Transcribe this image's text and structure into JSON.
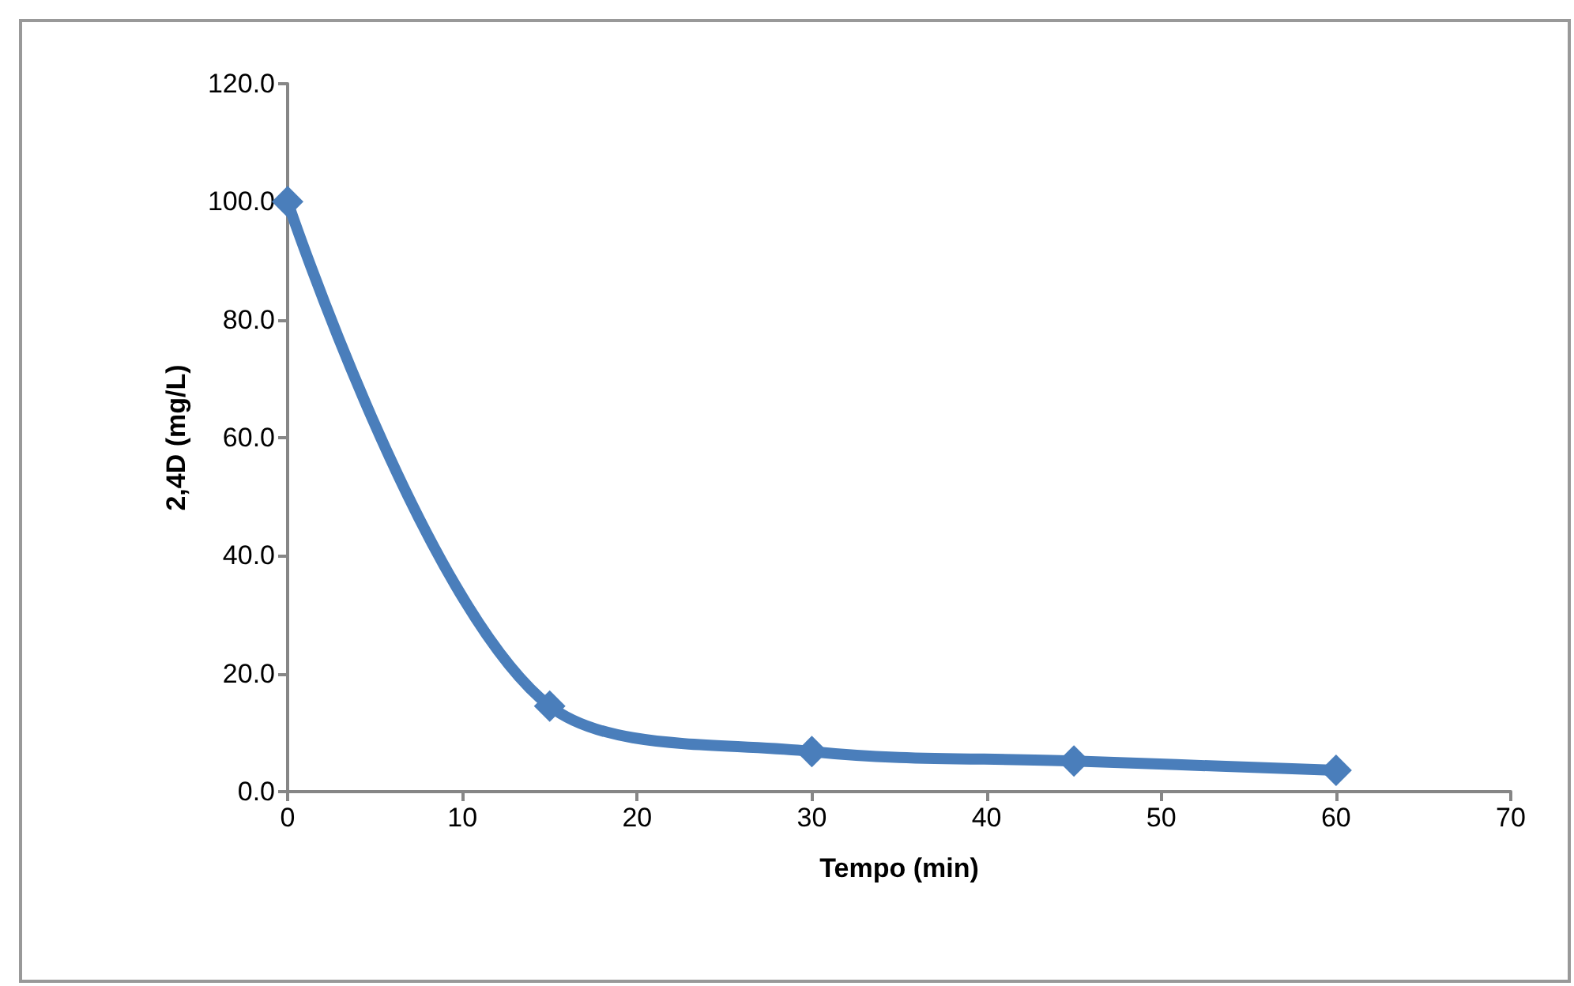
{
  "chart_data": {
    "type": "line",
    "xlabel": "Tempo (min)",
    "ylabel": "2,4D (mg/L)",
    "x": [
      0,
      15,
      30,
      45,
      60
    ],
    "series": [
      {
        "color": "#4a7ebb",
        "values": [
          100,
          14.5,
          6.8,
          5.2,
          3.6
        ]
      }
    ],
    "xlim": [
      0,
      70
    ],
    "xticks": [
      0,
      10,
      20,
      30,
      40,
      50,
      60,
      70
    ],
    "ylim": [
      0,
      120
    ],
    "yticks": [
      {
        "value": 0,
        "label": "0.0"
      },
      {
        "value": 20,
        "label": "20.0"
      },
      {
        "value": 40,
        "label": "40.0"
      },
      {
        "value": 60,
        "label": "60.0"
      },
      {
        "value": 80,
        "label": "80.0"
      },
      {
        "value": 100,
        "label": "100.0"
      },
      {
        "value": 120,
        "label": "120.0"
      }
    ],
    "grid": false,
    "marker": "diamond",
    "line_style": "solid"
  }
}
